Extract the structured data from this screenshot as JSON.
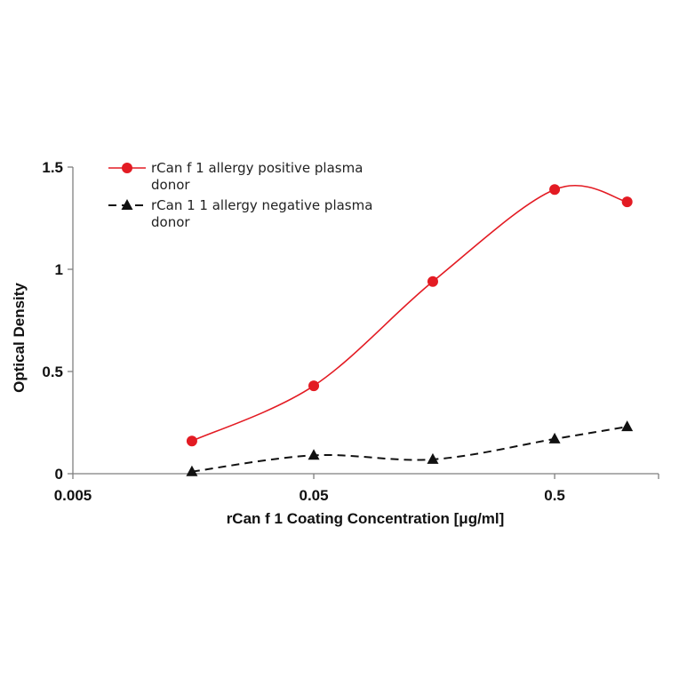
{
  "chart_data": {
    "type": "line",
    "xscale": "log",
    "xlim": [
      0.005,
      1.35
    ],
    "ylim": [
      0,
      1.5
    ],
    "xticks": [
      0.005,
      0.05,
      0.5
    ],
    "xtick_labels": [
      "0.005",
      "0.05",
      "0.5"
    ],
    "yticks": [
      0,
      0.5,
      1,
      1.5
    ],
    "ytick_labels": [
      "0",
      "0.5",
      "1",
      "1.5"
    ],
    "xlabel": "rCan f 1 Coating Concentration [μg/ml]",
    "ylabel": "Optical Density",
    "legend_position": "top-left",
    "grid": false,
    "series": [
      {
        "name_line1": "rCan f 1 allergy positive plasma",
        "name_line2": "donor",
        "x": [
          0.0156,
          0.05,
          0.156,
          0.5,
          1.0
        ],
        "y": [
          0.16,
          0.43,
          0.94,
          1.39,
          1.33
        ],
        "color": "#e31b23",
        "marker": "circle",
        "line_style": "solid"
      },
      {
        "name_line1": "rCan 1 1 allergy negative plasma",
        "name_line2": "donor",
        "x": [
          0.0156,
          0.05,
          0.156,
          0.5,
          1.0
        ],
        "y": [
          0.01,
          0.09,
          0.07,
          0.17,
          0.23
        ],
        "color": "#111111",
        "marker": "triangle",
        "line_style": "dashed"
      }
    ]
  }
}
